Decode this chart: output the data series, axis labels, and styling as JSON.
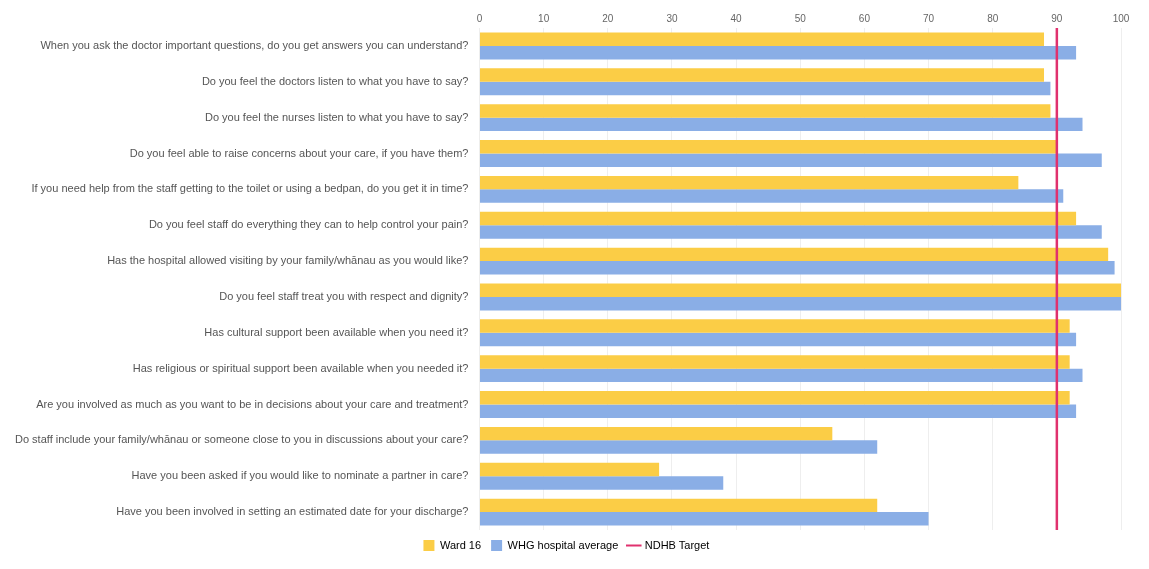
{
  "chart_data": {
    "type": "bar",
    "orientation": "horizontal",
    "categories": [
      "When you ask the doctor important questions, do you get answers you can understand?",
      "Do you feel the doctors listen to what you have to say?",
      "Do you feel the nurses listen to what you have to say?",
      "Do you feel able to raise concerns about your care, if you have them?",
      "If you need help from the staff getting to the toilet or using a bedpan, do you get it in time?",
      "Do you feel staff do everything they can to help control your pain?",
      "Has the hospital allowed visiting by your family/whānau as you would like?",
      "Do you feel staff treat you with respect and dignity?",
      "Has cultural support been available when you need it?",
      "Has religious or spiritual support been available when you needed it?",
      "Are you involved as much as you want to be in decisions about your care and treatment?",
      "Do staff include your family/whānau or someone close to you in discussions about your care?",
      "Have you been asked if you would like to nominate a partner in care?",
      "Have you been involved in setting an estimated date for your discharge?"
    ],
    "series": [
      {
        "name": "Ward 16",
        "color": "#fbcd46",
        "values": [
          88,
          88,
          89,
          90,
          84,
          93,
          98,
          100,
          92,
          92,
          92,
          55,
          28,
          62
        ]
      },
      {
        "name": "WHG hospital average",
        "color": "#8aaee6",
        "values": [
          93,
          89,
          94,
          97,
          91,
          97,
          99,
          100,
          93,
          94,
          93,
          62,
          38,
          70
        ]
      }
    ],
    "xlim": [
      0,
      100
    ],
    "xticks": [
      0,
      10,
      20,
      30,
      40,
      50,
      60,
      70,
      80,
      90,
      100
    ],
    "ref_lines": [
      {
        "axis": "x",
        "value": 90,
        "label": "NDHB Target",
        "color": "#e0316e"
      }
    ],
    "grid": "x",
    "legend": "bottom"
  }
}
